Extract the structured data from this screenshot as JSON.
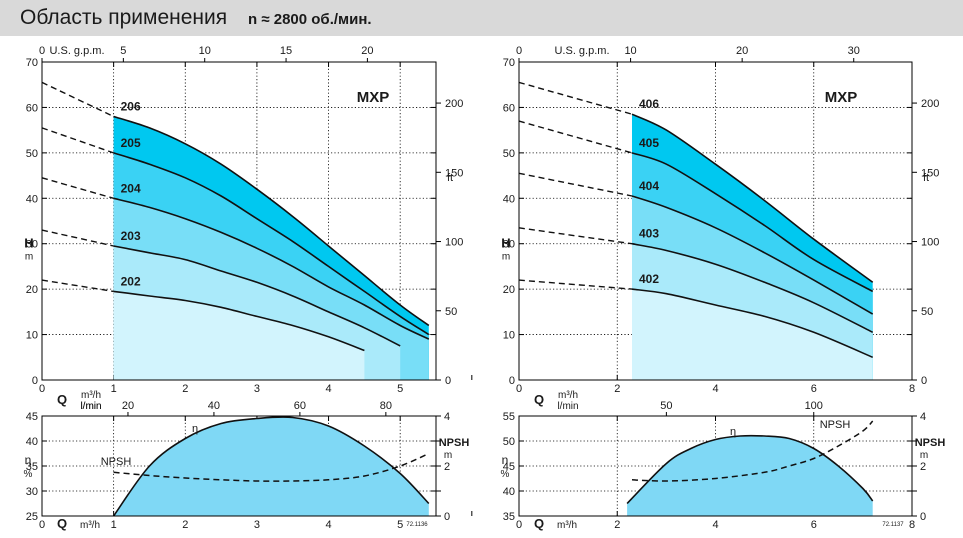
{
  "header": {
    "title": "Область применения",
    "speed": "n ≈ 2800 об./мин."
  },
  "chart_data": [
    {
      "type": "line",
      "panel": "MXP 200 head curves",
      "model": "MXP",
      "area_fill": true,
      "xlabel": "Q",
      "x_units": [
        "m³/h",
        "l/min"
      ],
      "ylabel": "H",
      "y_units": "m",
      "y2_units": "ft",
      "top_axis_label": "U.S. g.p.m.",
      "x_ticks": [
        "0",
        "1",
        "2",
        "3",
        "4",
        "5"
      ],
      "x_minor_ticks": [
        6
      ],
      "xlim": [
        0,
        5.5
      ],
      "y_ticks": [
        "0",
        "10",
        "20",
        "30",
        "40",
        "50",
        "60",
        "70"
      ],
      "ylim": [
        0,
        70
      ],
      "top_ticks": [
        "0",
        "5",
        "10",
        "15",
        "20"
      ],
      "top_tick_values": [
        0,
        5,
        10,
        15,
        20
      ],
      "y2_ticks": [
        "0",
        "50",
        "100",
        "150",
        "200"
      ],
      "y2_tick_values": [
        0,
        50,
        100,
        150,
        200
      ],
      "series": [
        {
          "name": "206",
          "x": [
            1.0,
            1.5,
            2.0,
            2.5,
            3.0,
            3.5,
            4.0,
            4.5,
            5.0,
            5.4
          ],
          "y": [
            58.0,
            55.5,
            52.0,
            47.5,
            42.0,
            36.0,
            29.5,
            23.0,
            16.5,
            12.0
          ]
        },
        {
          "name": "205",
          "x": [
            1.0,
            1.5,
            2.0,
            2.5,
            3.0,
            3.5,
            4.0,
            4.5,
            5.0,
            5.4
          ],
          "y": [
            50.0,
            47.5,
            44.5,
            40.5,
            35.5,
            30.5,
            25.0,
            19.5,
            14.0,
            10.0
          ]
        },
        {
          "name": "204",
          "x": [
            1.0,
            1.5,
            2.0,
            2.5,
            3.0,
            3.5,
            4.0,
            4.5,
            5.0,
            5.4
          ],
          "y": [
            40.0,
            38.0,
            35.5,
            32.5,
            29.0,
            25.0,
            20.5,
            16.5,
            12.0,
            9.0
          ]
        },
        {
          "name": "203",
          "x": [
            1.0,
            1.5,
            2.0,
            2.5,
            3.0,
            3.5,
            4.0,
            4.5,
            5.0
          ],
          "y": [
            29.5,
            28.0,
            26.5,
            24.0,
            21.5,
            18.5,
            15.0,
            11.5,
            7.5
          ]
        },
        {
          "name": "202",
          "x": [
            1.0,
            1.5,
            2.0,
            2.5,
            3.0,
            3.5,
            4.0,
            4.5
          ],
          "y": [
            19.5,
            18.5,
            17.5,
            16.0,
            14.0,
            12.0,
            9.5,
            6.5
          ]
        }
      ],
      "dashed_extensions": [
        {
          "series": "206",
          "x": [
            0.0,
            1.0
          ],
          "y": [
            65.5,
            58.0
          ]
        },
        {
          "series": "205",
          "x": [
            0.0,
            1.0
          ],
          "y": [
            55.5,
            50.0
          ]
        },
        {
          "series": "204",
          "x": [
            0.0,
            1.0
          ],
          "y": [
            44.5,
            40.0
          ]
        },
        {
          "series": "203",
          "x": [
            0.0,
            1.0
          ],
          "y": [
            33.0,
            29.5
          ]
        },
        {
          "series": "202",
          "x": [
            0.0,
            1.0
          ],
          "y": [
            22.0,
            19.5
          ]
        }
      ]
    },
    {
      "type": "line",
      "panel": "MXP 400 head curves",
      "model": "MXP",
      "area_fill": true,
      "xlabel": "Q",
      "x_units": [
        "m³/h",
        "l/min"
      ],
      "ylabel": "H",
      "y_units": "m",
      "y2_units": "ft",
      "top_axis_label": "U.S. g.p.m.",
      "x_ticks": [
        "0",
        "2",
        "4",
        "6",
        "8"
      ],
      "xlim": [
        0,
        8
      ],
      "y_ticks": [
        "0",
        "10",
        "20",
        "30",
        "40",
        "50",
        "60",
        "70"
      ],
      "ylim": [
        0,
        70
      ],
      "top_ticks": [
        "0",
        "10",
        "20",
        "30"
      ],
      "top_tick_values": [
        0,
        10,
        20,
        30
      ],
      "y2_ticks": [
        "0",
        "50",
        "100",
        "150",
        "200"
      ],
      "y2_tick_values": [
        0,
        50,
        100,
        150,
        200
      ],
      "series": [
        {
          "name": "406",
          "x": [
            2.3,
            3.0,
            4.0,
            5.0,
            6.0,
            7.2
          ],
          "y": [
            58.5,
            55.0,
            47.5,
            39.5,
            31.0,
            21.5
          ]
        },
        {
          "name": "405",
          "x": [
            2.3,
            3.0,
            4.0,
            5.0,
            6.0,
            7.2
          ],
          "y": [
            50.0,
            47.5,
            41.0,
            34.0,
            26.5,
            19.5
          ]
        },
        {
          "name": "404",
          "x": [
            2.3,
            3.0,
            4.0,
            5.0,
            6.0,
            7.2
          ],
          "y": [
            40.5,
            38.0,
            33.5,
            28.0,
            22.0,
            14.5
          ]
        },
        {
          "name": "403",
          "x": [
            2.3,
            3.0,
            4.0,
            5.0,
            6.0,
            7.2
          ],
          "y": [
            30.0,
            28.5,
            25.5,
            21.5,
            17.0,
            10.5
          ]
        },
        {
          "name": "402",
          "x": [
            2.3,
            3.0,
            4.0,
            5.0,
            6.0,
            7.2
          ],
          "y": [
            20.0,
            19.0,
            16.5,
            14.0,
            10.5,
            5.0
          ]
        }
      ],
      "dashed_extensions": [
        {
          "series": "406",
          "x": [
            0.0,
            2.3
          ],
          "y": [
            65.5,
            58.5
          ]
        },
        {
          "series": "405",
          "x": [
            0.0,
            2.3
          ],
          "y": [
            57.0,
            50.0
          ]
        },
        {
          "series": "404",
          "x": [
            0.0,
            2.3
          ],
          "y": [
            45.5,
            40.5
          ]
        },
        {
          "series": "403",
          "x": [
            0.0,
            2.3
          ],
          "y": [
            33.5,
            30.0
          ]
        },
        {
          "series": "402",
          "x": [
            0.0,
            2.3
          ],
          "y": [
            22.0,
            20.0
          ]
        }
      ]
    },
    {
      "type": "line",
      "panel": "MXP 200 efficiency and NPSH",
      "area_fill": true,
      "xlabel": "Q",
      "x_units": "m³/h",
      "top_axis_label": "l/min",
      "x_ticks": [
        "0",
        "1",
        "2",
        "3",
        "4",
        "5"
      ],
      "x_minor_ticks": [
        6
      ],
      "xlim": [
        0,
        5.5
      ],
      "ylabel": "η",
      "y_units": "%",
      "y_ticks": [
        "25",
        "30",
        "35",
        "40",
        "45"
      ],
      "ylim": [
        25,
        45
      ],
      "top_ticks": [
        "20",
        "40",
        "60",
        "80"
      ],
      "top_tick_values": [
        20,
        40,
        60,
        80
      ],
      "y2_label": "NPSH",
      "y2_units": "m",
      "y2_ticks": [
        "0",
        "2",
        "4"
      ],
      "y2_tick_values": [
        0,
        2,
        4
      ],
      "y2_minor_ticks": [
        1,
        3
      ],
      "y2lim": [
        0,
        4
      ],
      "series": [
        {
          "name": "η",
          "x": [
            1.0,
            1.5,
            2.0,
            2.5,
            3.0,
            3.5,
            4.0,
            4.5,
            5.0,
            5.4
          ],
          "y": [
            25.0,
            35.0,
            40.5,
            43.5,
            44.5,
            44.7,
            43.0,
            39.0,
            33.5,
            27.5
          ]
        },
        {
          "name": "NPSH",
          "axis": "y2",
          "x": [
            1.0,
            1.5,
            2.0,
            2.5,
            3.0,
            3.5,
            4.0,
            4.5,
            5.0,
            5.4
          ],
          "y": [
            1.75,
            1.62,
            1.52,
            1.45,
            1.4,
            1.4,
            1.45,
            1.6,
            2.0,
            2.5
          ]
        }
      ]
    },
    {
      "type": "line",
      "panel": "MXP 400 efficiency and NPSH",
      "area_fill": true,
      "xlabel": "Q",
      "x_units": "m³/h",
      "top_axis_label": "",
      "x_ticks": [
        "0",
        "2",
        "4",
        "6",
        "8"
      ],
      "xlim": [
        0,
        8
      ],
      "ylabel": "η",
      "y_units": "%",
      "y_ticks": [
        "35",
        "40",
        "45",
        "50",
        "55"
      ],
      "ylim": [
        35,
        55
      ],
      "top_ticks": [
        "50",
        "100"
      ],
      "top_tick_values": [
        50,
        100
      ],
      "y2_label": "NPSH",
      "y2_units": "m",
      "y2_ticks": [
        "0",
        "2",
        "4"
      ],
      "y2_tick_values": [
        0,
        2,
        4
      ],
      "y2_minor_ticks": [
        1,
        3
      ],
      "y2lim": [
        0,
        4
      ],
      "series": [
        {
          "name": "η",
          "x": [
            2.2,
            3.0,
            3.5,
            4.0,
            4.5,
            5.0,
            5.5,
            6.0,
            6.5,
            7.0,
            7.2
          ],
          "y": [
            37.5,
            45.5,
            48.5,
            50.3,
            51.0,
            51.0,
            50.5,
            48.5,
            45.0,
            40.5,
            38.0
          ]
        },
        {
          "name": "NPSH",
          "axis": "y2",
          "x": [
            2.3,
            3.0,
            4.0,
            5.0,
            5.5,
            6.0,
            6.5,
            7.0,
            7.2
          ],
          "y": [
            1.45,
            1.4,
            1.5,
            1.75,
            2.0,
            2.3,
            2.8,
            3.4,
            3.8
          ]
        }
      ]
    }
  ],
  "annotations": {
    "code_left": "72.1136",
    "code_right": "72.1137"
  }
}
